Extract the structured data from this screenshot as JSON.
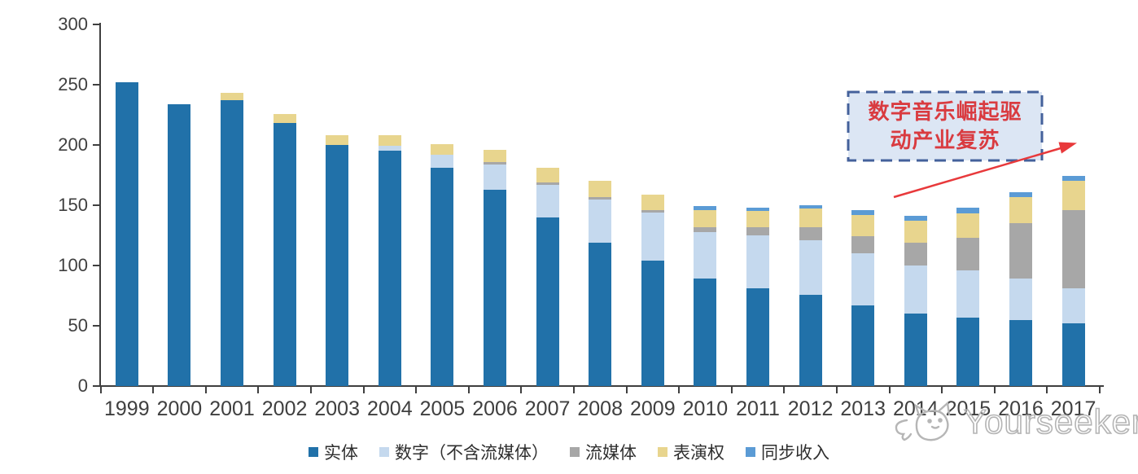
{
  "chart_data": {
    "type": "bar",
    "stacked": true,
    "categories": [
      "1999",
      "2000",
      "2001",
      "2002",
      "2003",
      "2004",
      "2005",
      "2006",
      "2007",
      "2008",
      "2009",
      "2010",
      "2011",
      "2012",
      "2013",
      "2014",
      "2015",
      "2016",
      "2017"
    ],
    "series": [
      {
        "name": "实体",
        "key": "physical",
        "color": "#2171A9",
        "values": [
          252,
          234,
          237,
          218,
          200,
          195,
          181,
          163,
          140,
          119,
          104,
          89,
          81,
          76,
          67,
          60,
          57,
          55,
          52
        ]
      },
      {
        "name": "数字（不含流媒体）",
        "key": "digital",
        "color": "#C5D9EE",
        "values": [
          0,
          0,
          0,
          0,
          0,
          4,
          11,
          21,
          27,
          36,
          40,
          39,
          44,
          45,
          43,
          40,
          39,
          34,
          29
        ]
      },
      {
        "name": "流媒体",
        "key": "streaming",
        "color": "#A7A7A7",
        "values": [
          0,
          0,
          0,
          0,
          0,
          0,
          0,
          2,
          2,
          2,
          2,
          4,
          7,
          11,
          14,
          19,
          27,
          46,
          65
        ]
      },
      {
        "name": "表演权",
        "key": "performance",
        "color": "#E8D58E",
        "values": [
          0,
          0,
          6,
          8,
          8,
          9,
          9,
          10,
          12,
          13,
          13,
          14,
          13,
          15,
          18,
          18,
          20,
          22,
          24
        ]
      },
      {
        "name": "同步收入",
        "key": "sync",
        "color": "#5B9BD5",
        "values": [
          0,
          0,
          0,
          0,
          0,
          0,
          0,
          0,
          0,
          0,
          0,
          3,
          3,
          3,
          4,
          4,
          5,
          4,
          4
        ]
      }
    ],
    "y_axis": {
      "min": 0,
      "max": 300,
      "tick_interval": 50,
      "ticks": [
        0,
        50,
        100,
        150,
        200,
        250,
        300
      ]
    },
    "x_axis": {
      "ticks_between_categories": true
    },
    "grid": false,
    "legend_position": "bottom"
  },
  "annotation": {
    "line1": "数字音乐崛起驱",
    "line2": "动产业复苏",
    "text_color": "#D93B40",
    "box_fill": "#DCE6F4",
    "box_border": "#44619B",
    "arrow_color": "#E8393B"
  },
  "watermark": {
    "text": "Yourseeker",
    "logo": "cat-doodle-icon",
    "color": "#B4B4B4"
  }
}
